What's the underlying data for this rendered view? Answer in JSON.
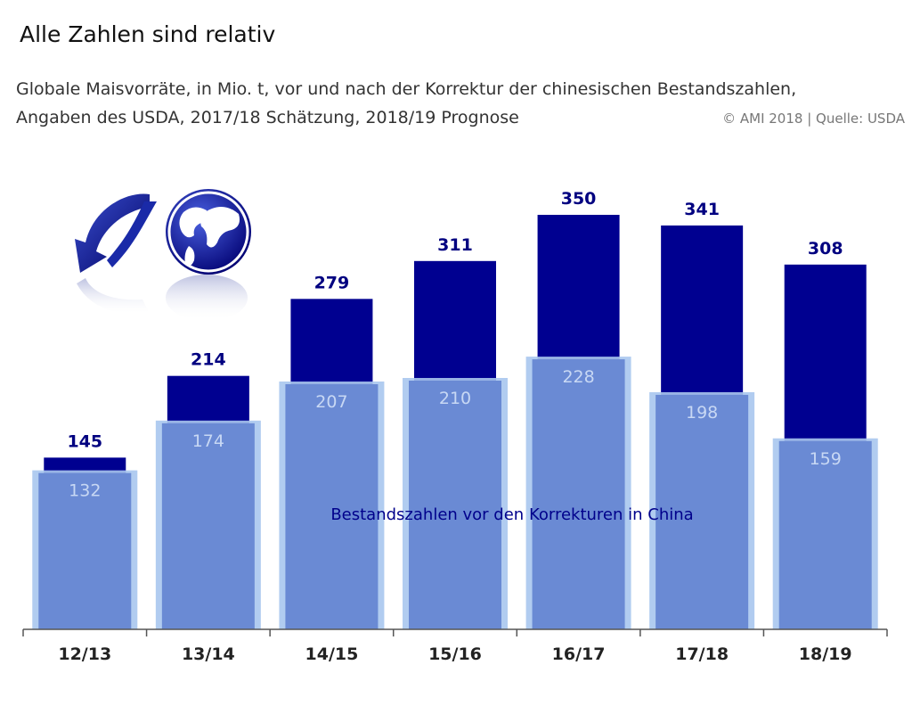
{
  "header": {
    "title": "Alle Zahlen sind relativ",
    "subtitle_line1": "Globale Maisvorräte, in Mio. t, vor und nach der Korrektur der chinesischen Bestandszahlen,",
    "subtitle_line2": "Angaben des USDA, 2017/18 Schätzung, 2018/19 Prognose",
    "source": "© AMI 2018 | Quelle: USDA"
  },
  "colors": {
    "after": "#000090",
    "before": "#6a8ad4",
    "before_glow": "#a9c7ee"
  },
  "logo": {
    "icon": "arrow-globe-logo"
  },
  "chart_data": {
    "type": "bar",
    "categories": [
      "12/13",
      "13/14",
      "14/15",
      "15/16",
      "16/17",
      "17/18",
      "18/19"
    ],
    "series": [
      {
        "values": [
          145,
          214,
          279,
          311,
          350,
          341,
          308
        ]
      },
      {
        "name": "Bestandszahlen vor den Korrekturen in China",
        "values": [
          132,
          174,
          207,
          210,
          228,
          198,
          159
        ]
      }
    ],
    "annotation": "Bestandszahlen vor den Korrekturen in China",
    "ylim": [
      0,
      350
    ],
    "grid": false
  }
}
